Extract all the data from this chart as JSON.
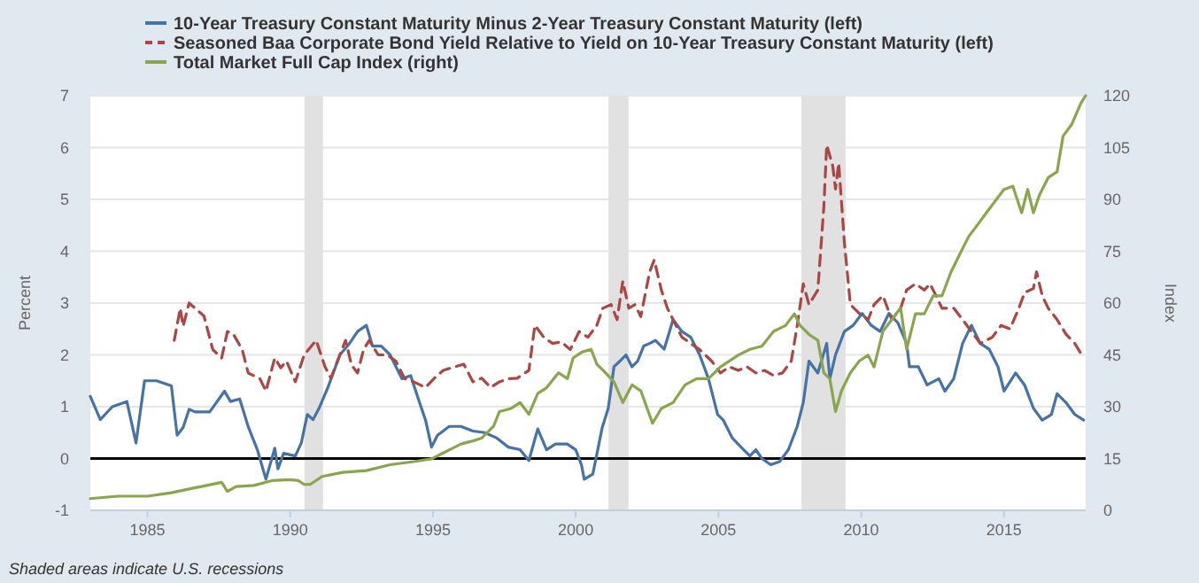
{
  "chart_data": {
    "type": "line",
    "xlim": [
      1983,
      2017.86
    ],
    "xticks": [
      1985,
      1990,
      1995,
      2000,
      2005,
      2010,
      2015
    ],
    "ylim": [
      -1,
      7
    ],
    "yticks": [
      -1,
      0,
      1,
      2,
      3,
      4,
      5,
      6,
      7
    ],
    "y2lim": [
      0,
      120
    ],
    "y2ticks": [
      0,
      15,
      30,
      45,
      60,
      75,
      90,
      105,
      120
    ],
    "ylabel": "Percent",
    "y2label": "Index",
    "grid": "y",
    "legend": "top left",
    "annotations": [
      "Shaded areas indicate U.S. recessions"
    ],
    "ref_lines": [
      {
        "axis": "y",
        "value": 0,
        "color": "#000000"
      }
    ],
    "bands": [
      {
        "axis": "x",
        "from": 1990.5,
        "to": 1991.15,
        "color": "#e1e1e1"
      },
      {
        "axis": "x",
        "from": 2001.15,
        "to": 2001.85,
        "color": "#e1e1e1"
      },
      {
        "axis": "x",
        "from": 2007.9,
        "to": 2009.45,
        "color": "#e1e1e1"
      }
    ],
    "series": [
      {
        "name": "10-Year Treasury Constant Maturity Minus 2-Year Treasury Constant Maturity (left)",
        "color": "#4572a7",
        "line_style": "solid",
        "x": [
          1983.0,
          1983.35,
          1983.77,
          1984.28,
          1984.6,
          1984.9,
          1985.32,
          1985.84,
          1986.04,
          1986.25,
          1986.46,
          1986.67,
          1987.18,
          1987.7,
          1987.91,
          1988.23,
          1988.54,
          1988.85,
          1989.15,
          1989.46,
          1989.57,
          1989.77,
          1990.18,
          1990.39,
          1990.6,
          1990.8,
          1991.01,
          1991.32,
          1991.74,
          1992.05,
          1992.36,
          1992.67,
          1992.88,
          1993.19,
          1993.5,
          1993.91,
          1994.22,
          1994.53,
          1994.74,
          1994.95,
          1995.16,
          1995.57,
          1995.98,
          1996.4,
          1996.81,
          1997.22,
          1997.64,
          1998.05,
          1998.36,
          1998.67,
          1998.98,
          1999.29,
          1999.7,
          2000.0,
          2000.2,
          2000.3,
          2000.6,
          2000.93,
          2001.14,
          2001.34,
          2001.55,
          2001.76,
          2001.97,
          2002.17,
          2002.38,
          2002.59,
          2002.79,
          2003.1,
          2003.41,
          2003.72,
          2004.03,
          2004.34,
          2004.65,
          2004.97,
          2005.17,
          2005.48,
          2005.79,
          2006.1,
          2006.31,
          2006.52,
          2006.83,
          2007.14,
          2007.45,
          2007.76,
          2007.97,
          2008.17,
          2008.48,
          2008.79,
          2008.9,
          2009.1,
          2009.41,
          2009.72,
          2010.03,
          2010.35,
          2010.66,
          2010.97,
          2011.28,
          2011.59,
          2011.69,
          2012.0,
          2012.31,
          2012.72,
          2012.93,
          2013.24,
          2013.55,
          2013.86,
          2014.17,
          2014.48,
          2014.79,
          2015.0,
          2015.41,
          2015.72,
          2016.03,
          2016.34,
          2016.66,
          2016.86,
          2017.17,
          2017.48,
          2017.79
        ],
        "values": [
          1.2,
          0.75,
          1.0,
          1.1,
          0.3,
          1.5,
          1.5,
          1.4,
          0.45,
          0.6,
          0.95,
          0.9,
          0.9,
          1.3,
          1.1,
          1.15,
          0.6,
          0.17,
          -0.4,
          0.2,
          -0.2,
          0.1,
          0.05,
          0.3,
          0.85,
          0.75,
          0.97,
          1.37,
          2.0,
          2.2,
          2.45,
          2.57,
          2.17,
          2.17,
          2.0,
          1.54,
          1.6,
          1.08,
          0.74,
          0.22,
          0.45,
          0.62,
          0.62,
          0.53,
          0.5,
          0.4,
          0.22,
          0.17,
          -0.04,
          0.57,
          0.17,
          0.28,
          0.28,
          0.17,
          -0.12,
          -0.4,
          -0.3,
          0.6,
          0.97,
          1.77,
          1.88,
          2.0,
          1.77,
          1.88,
          2.17,
          2.22,
          2.28,
          2.11,
          2.68,
          2.45,
          2.34,
          2.0,
          1.54,
          0.85,
          0.74,
          0.4,
          0.22,
          0.05,
          0.17,
          0.0,
          -0.12,
          -0.06,
          0.17,
          0.62,
          1.08,
          1.88,
          1.65,
          2.22,
          1.54,
          2.0,
          2.45,
          2.57,
          2.8,
          2.57,
          2.45,
          2.8,
          2.62,
          2.22,
          1.77,
          1.77,
          1.42,
          1.54,
          1.3,
          1.54,
          2.22,
          2.57,
          2.22,
          2.11,
          1.77,
          1.3,
          1.65,
          1.42,
          0.97,
          0.74,
          0.85,
          1.25,
          1.08,
          0.85,
          0.74
        ]
      },
      {
        "name": "Seasoned Baa Corporate Bond Yield Relative to Yield on 10-Year Treasury Constant Maturity (left)",
        "color": "#aa4643",
        "line_style": "dashed",
        "x": [
          1985.94,
          1986.15,
          1986.25,
          1986.46,
          1986.77,
          1986.98,
          1987.29,
          1987.6,
          1987.8,
          1988.01,
          1988.32,
          1988.53,
          1988.94,
          1989.15,
          1989.46,
          1989.67,
          1989.87,
          1990.18,
          1990.49,
          1990.91,
          1991.22,
          1991.43,
          1991.74,
          1991.94,
          1992.15,
          1992.36,
          1992.57,
          1992.77,
          1993.08,
          1993.39,
          1993.7,
          1994.01,
          1994.32,
          1994.74,
          1995.05,
          1995.36,
          1995.77,
          1996.08,
          1996.4,
          1996.71,
          1997.02,
          1997.33,
          1997.64,
          1997.95,
          1998.36,
          1998.57,
          1998.88,
          1999.19,
          1999.5,
          1999.81,
          2000.12,
          2000.43,
          2000.74,
          2000.95,
          2001.24,
          2001.45,
          2001.65,
          2001.86,
          2002.07,
          2002.28,
          2002.59,
          2002.75,
          2003.0,
          2003.21,
          2003.41,
          2003.72,
          2004.03,
          2004.34,
          2004.76,
          2005.07,
          2005.38,
          2005.69,
          2006.0,
          2006.31,
          2006.62,
          2006.93,
          2007.24,
          2007.55,
          2007.76,
          2007.97,
          2008.17,
          2008.48,
          2008.69,
          2008.79,
          2009.0,
          2009.1,
          2009.21,
          2009.41,
          2009.62,
          2009.93,
          2010.24,
          2010.45,
          2010.76,
          2011.07,
          2011.38,
          2011.59,
          2011.9,
          2012.21,
          2012.41,
          2012.62,
          2012.83,
          2013.24,
          2013.55,
          2013.86,
          2014.17,
          2014.59,
          2014.9,
          2015.21,
          2015.52,
          2015.72,
          2016.03,
          2016.14,
          2016.34,
          2016.55,
          2016.86,
          2017.17,
          2017.48,
          2017.79
        ],
        "values": [
          2.28,
          2.9,
          2.55,
          3.0,
          2.85,
          2.75,
          2.1,
          1.94,
          2.45,
          2.4,
          2.1,
          1.65,
          1.54,
          1.3,
          1.94,
          1.75,
          1.88,
          1.48,
          2.0,
          2.28,
          1.77,
          1.55,
          2.0,
          2.28,
          1.8,
          1.65,
          2.1,
          2.28,
          2.0,
          2.0,
          1.88,
          1.54,
          1.48,
          1.37,
          1.55,
          1.7,
          1.77,
          1.82,
          1.48,
          1.55,
          1.37,
          1.48,
          1.54,
          1.55,
          1.7,
          2.57,
          2.34,
          2.22,
          2.25,
          2.1,
          2.45,
          2.34,
          2.57,
          2.9,
          2.97,
          2.68,
          3.42,
          2.9,
          2.97,
          2.74,
          3.6,
          3.83,
          3.25,
          2.9,
          2.68,
          2.34,
          2.22,
          2.1,
          1.88,
          1.65,
          1.77,
          1.7,
          1.77,
          1.65,
          1.7,
          1.6,
          1.65,
          1.88,
          2.57,
          3.37,
          2.97,
          3.25,
          4.85,
          6.05,
          5.65,
          5.2,
          5.7,
          4.17,
          2.97,
          2.8,
          2.68,
          2.97,
          3.14,
          2.68,
          2.9,
          3.25,
          3.37,
          3.25,
          3.37,
          3.14,
          2.9,
          2.9,
          2.68,
          2.45,
          2.22,
          2.34,
          2.57,
          2.5,
          2.9,
          3.2,
          3.28,
          3.6,
          3.14,
          2.9,
          2.68,
          2.4,
          2.22,
          1.94
        ]
      },
      {
        "name": "Total Market Full Cap Index (right)",
        "color": "#89a54e",
        "line_style": "solid",
        "axis": "y2",
        "x": [
          1983.0,
          1983.97,
          1985.01,
          1985.84,
          1986.46,
          1987.08,
          1987.6,
          1987.8,
          1988.11,
          1988.73,
          1989.36,
          1989.98,
          1990.29,
          1990.49,
          1990.7,
          1991.12,
          1991.84,
          1992.67,
          1993.5,
          1994.32,
          1994.95,
          1995.36,
          1995.98,
          1996.4,
          1996.71,
          1997.12,
          1997.33,
          1997.74,
          1998.05,
          1998.36,
          1998.67,
          1998.98,
          1999.4,
          1999.71,
          1999.91,
          2000.22,
          2000.54,
          2000.74,
          2000.95,
          2001.34,
          2001.65,
          2001.97,
          2002.28,
          2002.69,
          2003.0,
          2003.41,
          2003.83,
          2004.24,
          2004.65,
          2005.07,
          2005.69,
          2006.1,
          2006.52,
          2006.93,
          2007.35,
          2007.66,
          2007.86,
          2008.17,
          2008.48,
          2008.69,
          2008.9,
          2009.1,
          2009.31,
          2009.62,
          2009.93,
          2010.24,
          2010.45,
          2010.76,
          2011.07,
          2011.38,
          2011.59,
          2011.9,
          2012.21,
          2012.52,
          2012.83,
          2013.14,
          2013.45,
          2013.76,
          2014.07,
          2014.38,
          2014.69,
          2015.0,
          2015.31,
          2015.62,
          2015.83,
          2016.03,
          2016.24,
          2016.55,
          2016.86,
          2017.07,
          2017.38,
          2017.69,
          2017.86
        ],
        "values": [
          3.4,
          4.1,
          4.1,
          5.1,
          6.2,
          7.2,
          8.1,
          5.5,
          6.9,
          7.2,
          8.6,
          8.9,
          8.6,
          7.5,
          7.5,
          9.8,
          11.0,
          11.5,
          13.2,
          14.1,
          14.9,
          16.6,
          19.2,
          20.1,
          20.9,
          24.3,
          28.6,
          29.5,
          31.2,
          27.8,
          33.8,
          35.5,
          39.8,
          38.1,
          44.1,
          45.8,
          46.6,
          42.3,
          40.6,
          37.2,
          31.2,
          36.3,
          34.6,
          25.2,
          29.5,
          31.2,
          36.3,
          38.1,
          38.1,
          41.5,
          44.9,
          46.6,
          47.5,
          51.8,
          53.5,
          56.9,
          53.5,
          50.9,
          49.2,
          39.8,
          38.1,
          28.6,
          34.6,
          39.8,
          43.2,
          44.9,
          41.5,
          51.8,
          55.2,
          58.6,
          46.6,
          56.9,
          56.9,
          62.1,
          62.1,
          68.9,
          74.1,
          79.2,
          82.6,
          86.1,
          89.5,
          92.9,
          93.8,
          86.1,
          92.9,
          86.1,
          91.2,
          96.3,
          98.0,
          108.3,
          111.8,
          117.8,
          120
        ]
      }
    ]
  }
}
